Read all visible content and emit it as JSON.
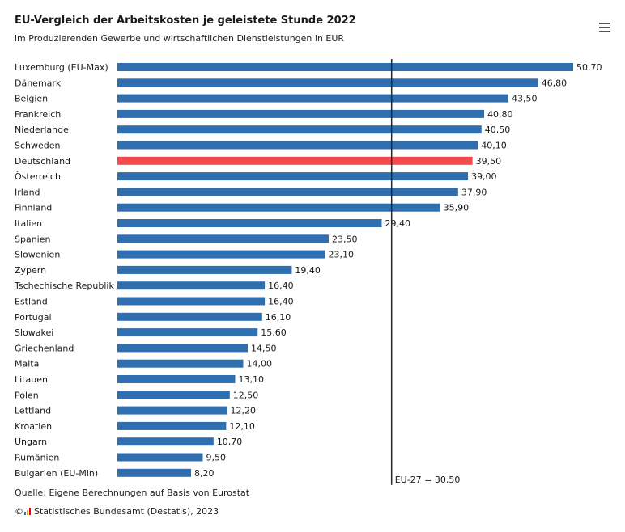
{
  "header": {
    "title": "EU-Vergleich der Arbeitskosten je geleistete Stunde 2022",
    "subtitle": "im Produzierenden Gewerbe und wirtschaftlichen Dienstleistungen in EUR"
  },
  "footer": {
    "source": "Quelle: Eigene Berechnungen auf Basis von Eurostat",
    "copyright_symbol": "©",
    "copyright_text": "Statistisches Bundesamt (Destatis), 2023"
  },
  "menu": {
    "icon": "hamburger-menu-icon"
  },
  "colors": {
    "bar": "#2f6fb0",
    "highlight": "#f24a4f",
    "reference_line": "#1a2a3a"
  },
  "chart_data": {
    "type": "bar",
    "orientation": "horizontal",
    "title": "EU-Vergleich der Arbeitskosten je geleistete Stunde 2022",
    "subtitle": "im Produzierenden Gewerbe und wirtschaftlichen Dienstleistungen in EUR",
    "categories": [
      "Luxemburg (EU-Max)",
      "Dänemark",
      "Belgien",
      "Frankreich",
      "Niederlande",
      "Schweden",
      "Deutschland",
      "Österreich",
      "Irland",
      "Finnland",
      "Italien",
      "Spanien",
      "Slowenien",
      "Zypern",
      "Tschechische Republik",
      "Estland",
      "Portugal",
      "Slowakei",
      "Griechenland",
      "Malta",
      "Litauen",
      "Polen",
      "Lettland",
      "Kroatien",
      "Ungarn",
      "Rumänien",
      "Bulgarien (EU-Min)"
    ],
    "values": [
      50.7,
      46.8,
      43.5,
      40.8,
      40.5,
      40.1,
      39.5,
      39.0,
      37.9,
      35.9,
      29.4,
      23.5,
      23.1,
      19.4,
      16.4,
      16.4,
      16.1,
      15.6,
      14.5,
      14.0,
      13.1,
      12.5,
      12.2,
      12.1,
      10.7,
      9.5,
      8.2
    ],
    "value_labels": [
      "50,70",
      "46,80",
      "43,50",
      "40,80",
      "40,50",
      "40,10",
      "39,50",
      "39,00",
      "37,90",
      "35,90",
      "29,40",
      "23,50",
      "23,10",
      "19,40",
      "16,40",
      "16,40",
      "16,10",
      "15,60",
      "14,50",
      "14,00",
      "13,10",
      "12,50",
      "12,20",
      "12,10",
      "10,70",
      "9,50",
      "8,20"
    ],
    "highlight_category": "Deutschland",
    "reference_line": {
      "value": 30.5,
      "label": "EU-27 = 30,50"
    },
    "xlim": [
      0,
      50.7
    ],
    "grid": false,
    "legend": "none"
  }
}
